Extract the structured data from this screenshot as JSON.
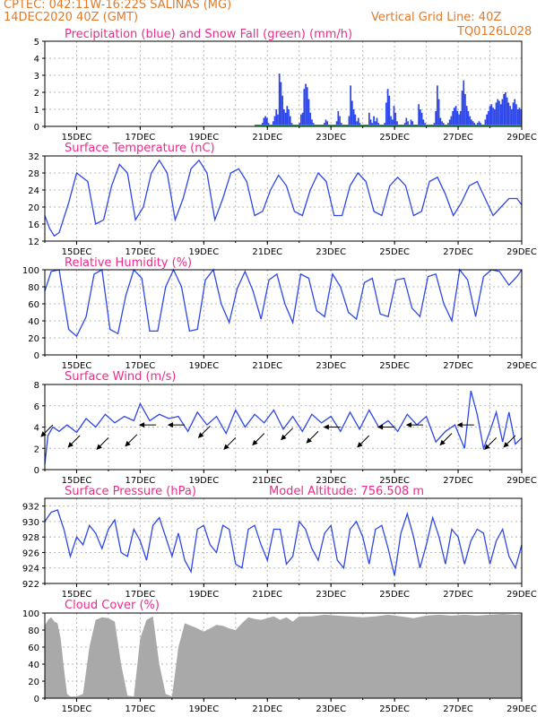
{
  "header": {
    "station": "CPTEC:  042:11W-16:22S  SALINAS (MG)",
    "date": "14DEC2020 40Z (GMT)",
    "grid_note": "Vertical Grid Line: 40Z",
    "code": "TQ0126L028"
  },
  "colors": {
    "line": "#2e47e8",
    "snow": "#21b24a",
    "title": "#ee2a8a",
    "header": "#e07a2a",
    "cloud": "#a9a9a9",
    "wind_arrow": "#000000"
  },
  "x_tick_labels": [
    "15DEC",
    "17DEC",
    "19DEC",
    "21DEC",
    "23DEC",
    "25DEC",
    "27DEC",
    "29DEC"
  ],
  "chart_data": [
    {
      "type": "bar",
      "title": "Precipitation (blue) and Snow Fall (green) (mm/h)",
      "ylim": [
        0,
        5
      ],
      "yticks": [
        0,
        1,
        2,
        3,
        4,
        5
      ],
      "grid": true,
      "x_start": "14DEC2020 00Z",
      "x_end": "29DEC2020 00Z",
      "series": [
        {
          "name": "precipitation",
          "values": [
            0,
            0,
            0,
            0,
            0,
            0,
            0,
            0,
            0,
            0,
            0,
            0,
            0,
            0,
            0,
            0,
            0,
            0,
            0,
            0,
            0,
            0,
            0,
            0,
            0,
            0,
            0,
            0,
            0,
            0,
            0,
            0,
            0,
            0,
            0,
            0,
            0,
            0,
            0,
            0,
            0,
            0,
            0,
            0,
            0,
            0,
            0,
            0,
            0,
            0,
            0,
            0,
            0,
            0,
            0,
            0,
            0,
            0,
            0,
            0,
            0,
            0,
            0,
            0,
            0,
            0,
            0,
            0,
            0,
            0,
            0,
            0,
            0,
            0,
            0,
            0,
            0,
            0,
            0,
            0,
            0,
            0,
            0,
            0,
            0,
            0,
            0,
            0,
            0,
            0,
            0,
            0,
            0,
            0,
            0,
            0,
            0,
            0,
            0,
            0,
            0,
            0,
            0,
            0,
            0,
            0,
            0,
            0,
            0,
            0,
            0,
            0,
            0,
            0,
            0,
            0,
            0,
            0,
            0,
            0,
            0,
            0,
            0,
            0,
            0,
            0,
            0,
            0,
            0,
            0,
            0,
            0,
            0,
            0,
            0,
            0,
            0,
            0,
            0,
            0,
            0.2,
            0.5,
            0.6,
            0.5,
            0.2,
            0.1,
            0,
            0.3,
            0.6,
            1.0,
            0.7,
            3.1,
            2.6,
            1.8,
            1.0,
            0.8,
            1.2,
            1.0,
            0.6,
            0.2,
            0.1,
            0,
            0,
            0.1,
            0.2,
            0.7,
            0.8,
            2.2,
            2.5,
            2.3,
            1.6,
            0.8,
            0.4,
            0.2,
            0.1,
            0.05,
            0,
            0,
            0,
            0.1,
            0.2,
            0.4,
            0.3,
            0.1,
            0,
            0,
            0,
            0,
            0.3,
            0.9,
            0.6,
            0.2,
            0.1,
            0,
            0,
            0,
            0.6,
            2.4,
            1.5,
            1.0,
            0.7,
            0.3,
            0.5,
            0.2,
            0.1,
            0,
            0,
            0,
            0.1,
            0.8,
            0.4,
            0.2,
            0.6,
            0.3,
            0.5,
            0.2,
            0.1,
            0,
            0.1,
            0.2,
            1.4,
            2.2,
            1.8,
            0.6,
            0.4,
            1.2,
            0.8,
            0.3,
            0.1,
            0,
            0,
            0.1,
            0.2,
            0.5,
            0.3,
            0.1,
            0.4,
            0.3,
            0.1,
            0,
            0,
            1.3,
            1.0,
            0.8,
            0.4,
            0.2,
            0.1,
            0.1,
            0,
            0,
            0,
            0.2,
            0.9,
            2.4,
            1.6,
            0.5,
            0.3,
            0.2,
            0.1,
            0,
            0.2,
            0.4,
            0.6,
            0.9,
            1.1,
            1.2,
            0.9,
            0.7,
            0.9,
            2.1,
            2.7,
            1.9,
            1.2,
            0.9,
            0.6,
            0.4,
            0.3,
            0.2,
            0.1,
            0.2,
            0.3,
            0.2,
            0.1,
            0.1,
            0.4,
            0.7,
            0.9,
            1.2,
            1.3,
            1.1,
            1.0,
            1.4,
            1.6,
            1.5,
            1.3,
            1.6,
            1.9,
            2.0,
            1.7,
            1.4,
            1.2,
            1.0,
            1.4,
            1.6,
            1.3,
            1.0,
            1.1,
            1.0
          ]
        },
        {
          "name": "snowfall",
          "values": [
            0
          ]
        }
      ]
    },
    {
      "type": "line",
      "title": "Surface Temperature (nC)",
      "ylim": [
        12,
        32
      ],
      "yticks": [
        12,
        16,
        20,
        24,
        28,
        32
      ],
      "grid": true,
      "x_start": "14DEC2020 00Z",
      "x_end": "29DEC2020 00Z",
      "series": [
        {
          "name": "temperature",
          "x_days": [
            0,
            0.15,
            0.3,
            0.45,
            0.75,
            1.0,
            1.35,
            1.6,
            1.85,
            2.1,
            2.35,
            2.6,
            2.85,
            3.1,
            3.35,
            3.6,
            3.85,
            4.1,
            4.35,
            4.6,
            4.85,
            5.1,
            5.35,
            5.6,
            5.85,
            6.1,
            6.35,
            6.6,
            6.85,
            7.1,
            7.35,
            7.6,
            7.85,
            8.1,
            8.35,
            8.6,
            8.85,
            9.1,
            9.35,
            9.6,
            9.85,
            10.1,
            10.35,
            10.6,
            10.85,
            11.1,
            11.35,
            11.6,
            11.85,
            12.1,
            12.35,
            12.6,
            12.85,
            13.1,
            13.35,
            13.6,
            13.85,
            14.1,
            14.35,
            14.6,
            14.85,
            15.0
          ],
          "values": [
            18,
            15,
            13.2,
            14,
            21,
            28,
            26,
            16,
            17,
            25,
            30,
            28,
            17,
            20,
            28,
            31,
            28,
            17,
            22,
            29,
            31,
            28,
            17,
            22,
            28,
            29,
            26,
            18,
            19,
            24,
            27.5,
            25,
            19,
            18,
            24,
            28,
            26,
            18,
            18,
            25,
            28,
            26,
            19,
            18,
            25,
            27,
            25,
            18,
            19,
            26,
            27,
            23,
            18,
            21,
            25,
            26,
            22,
            18,
            20,
            22,
            22,
            20.5
          ]
        }
      ]
    },
    {
      "type": "line",
      "title": "Relative Humidity (%)",
      "ylim": [
        0,
        100
      ],
      "yticks": [
        0,
        20,
        40,
        60,
        80,
        100
      ],
      "grid": true,
      "x_start": "14DEC2020 00Z",
      "x_end": "29DEC2020 00Z",
      "series": [
        {
          "name": "relative humidity",
          "x_days": [
            0,
            0.2,
            0.45,
            0.75,
            1.0,
            1.3,
            1.55,
            1.8,
            2.05,
            2.3,
            2.55,
            2.8,
            3.05,
            3.3,
            3.55,
            3.8,
            4.05,
            4.3,
            4.55,
            4.8,
            5.05,
            5.3,
            5.55,
            5.8,
            6.05,
            6.3,
            6.55,
            6.8,
            7.05,
            7.3,
            7.55,
            7.8,
            8.05,
            8.3,
            8.55,
            8.8,
            9.05,
            9.3,
            9.55,
            9.8,
            10.05,
            10.3,
            10.55,
            10.8,
            11.05,
            11.3,
            11.55,
            11.8,
            12.05,
            12.3,
            12.55,
            12.8,
            13.05,
            13.3,
            13.55,
            13.8,
            14.05,
            14.3,
            14.6,
            14.85,
            15.0
          ],
          "values": [
            75,
            98,
            100,
            30,
            22,
            45,
            95,
            100,
            30,
            25,
            70,
            100,
            90,
            28,
            28,
            80,
            100,
            80,
            28,
            30,
            88,
            100,
            60,
            38,
            78,
            98,
            75,
            42,
            88,
            95,
            60,
            38,
            95,
            90,
            52,
            45,
            95,
            80,
            50,
            42,
            85,
            90,
            48,
            45,
            88,
            90,
            55,
            45,
            92,
            95,
            60,
            40,
            100,
            88,
            45,
            92,
            100,
            98,
            82,
            92,
            100
          ]
        }
      ]
    },
    {
      "type": "line",
      "title": "Surface Wind (m/s)",
      "ylim": [
        0,
        8
      ],
      "yticks": [
        0,
        2,
        4,
        6,
        8
      ],
      "grid": true,
      "x_start": "14DEC2020 00Z",
      "x_end": "29DEC2020 00Z",
      "series": [
        {
          "name": "wind speed",
          "x_days": [
            0,
            0.1,
            0.25,
            0.45,
            0.7,
            1.0,
            1.3,
            1.6,
            1.9,
            2.2,
            2.5,
            2.8,
            3.0,
            3.3,
            3.6,
            3.9,
            4.2,
            4.5,
            4.8,
            5.1,
            5.4,
            5.7,
            6.0,
            6.3,
            6.6,
            6.9,
            7.2,
            7.5,
            7.8,
            8.1,
            8.4,
            8.7,
            9.0,
            9.3,
            9.6,
            9.9,
            10.2,
            10.5,
            10.8,
            11.1,
            11.4,
            11.7,
            12.0,
            12.3,
            12.6,
            12.9,
            13.2,
            13.4,
            13.6,
            13.8,
            14.0,
            14.2,
            14.4,
            14.6,
            14.8,
            15.0
          ],
          "values": [
            0.5,
            3.2,
            4.0,
            3.6,
            4.2,
            3.5,
            4.8,
            4.0,
            5.2,
            4.4,
            5.0,
            4.6,
            6.2,
            4.6,
            5.2,
            4.8,
            5.0,
            3.6,
            5.4,
            4.2,
            5.0,
            3.4,
            5.6,
            4.0,
            5.2,
            4.4,
            5.6,
            3.8,
            5.0,
            3.6,
            5.2,
            4.4,
            5.0,
            3.6,
            5.4,
            3.8,
            5.6,
            4.0,
            4.6,
            3.6,
            5.2,
            4.2,
            5.0,
            2.6,
            3.6,
            4.2,
            2.0,
            7.4,
            5.2,
            2.0,
            3.6,
            5.4,
            2.6,
            5.4,
            2.4,
            3.0
          ]
        }
      ]
    },
    {
      "type": "line",
      "title": "Surface Pressure (hPa)",
      "annotation": "Model Altitude: 756.508 m",
      "ylim": [
        922,
        933
      ],
      "yticks": [
        922,
        924,
        926,
        928,
        930,
        932
      ],
      "grid": true,
      "x_start": "14DEC2020 00Z",
      "x_end": "29DEC2020 00Z",
      "series": [
        {
          "name": "pressure",
          "x_days": [
            0,
            0.2,
            0.4,
            0.6,
            0.8,
            1.0,
            1.2,
            1.4,
            1.6,
            1.8,
            2.0,
            2.2,
            2.4,
            2.6,
            2.8,
            3.0,
            3.2,
            3.4,
            3.6,
            3.8,
            4.0,
            4.2,
            4.4,
            4.6,
            4.8,
            5.0,
            5.2,
            5.4,
            5.6,
            5.8,
            6.0,
            6.2,
            6.4,
            6.6,
            6.8,
            7.0,
            7.2,
            7.4,
            7.6,
            7.8,
            8.0,
            8.2,
            8.4,
            8.6,
            8.8,
            9.0,
            9.2,
            9.4,
            9.6,
            9.8,
            10.0,
            10.2,
            10.4,
            10.6,
            10.8,
            11.0,
            11.2,
            11.4,
            11.6,
            11.8,
            12.0,
            12.2,
            12.4,
            12.6,
            12.8,
            13.0,
            13.2,
            13.4,
            13.6,
            13.8,
            14.0,
            14.2,
            14.4,
            14.6,
            14.8,
            15.0
          ],
          "values": [
            930,
            931.2,
            931.5,
            929,
            925.5,
            928,
            927,
            929.5,
            928.5,
            926.5,
            929,
            930.2,
            926,
            925.5,
            929,
            927.5,
            925,
            929.5,
            930.5,
            928,
            925.5,
            928.5,
            925,
            923.5,
            929,
            929.5,
            927,
            926,
            929.5,
            929,
            924.5,
            924,
            929,
            929.5,
            927,
            925,
            929,
            929,
            924.5,
            925.5,
            930,
            929,
            926.5,
            925,
            928.5,
            929.5,
            925,
            924,
            929,
            930,
            928,
            924.5,
            929,
            929.5,
            926.5,
            923,
            928.5,
            931,
            928,
            924,
            927,
            930.5,
            928,
            924.5,
            929,
            928,
            924.5,
            927.5,
            929,
            928.5,
            924.5,
            927.5,
            929,
            925.5,
            924,
            927
          ]
        }
      ]
    },
    {
      "type": "area",
      "title": "Cloud Cover (%)",
      "ylim": [
        0,
        100
      ],
      "yticks": [
        0,
        20,
        40,
        60,
        80,
        100
      ],
      "grid": true,
      "x_start": "14DEC2020 00Z",
      "x_end": "29DEC2020 00Z",
      "series": [
        {
          "name": "cloud cover",
          "x_days": [
            0,
            0.1,
            0.2,
            0.3,
            0.4,
            0.5,
            0.6,
            0.7,
            0.8,
            0.9,
            1.0,
            1.2,
            1.4,
            1.6,
            1.8,
            2.0,
            2.2,
            2.4,
            2.6,
            2.8,
            3.0,
            3.2,
            3.4,
            3.6,
            3.8,
            4.0,
            4.2,
            4.4,
            4.6,
            4.8,
            5.0,
            5.2,
            5.4,
            5.6,
            5.8,
            6.0,
            6.2,
            6.4,
            6.6,
            6.8,
            7.0,
            7.2,
            7.4,
            7.6,
            7.8,
            8.0,
            8.4,
            8.8,
            9.2,
            9.6,
            10.0,
            10.4,
            10.8,
            11.2,
            11.6,
            12.0,
            12.4,
            12.8,
            13.2,
            13.6,
            14.0,
            14.4,
            14.8,
            15.0
          ],
          "values": [
            85,
            92,
            95,
            90,
            88,
            70,
            35,
            5,
            2,
            2,
            2,
            5,
            60,
            92,
            95,
            94,
            90,
            40,
            3,
            2,
            70,
            92,
            96,
            40,
            5,
            2,
            60,
            88,
            85,
            82,
            78,
            82,
            86,
            85,
            82,
            80,
            88,
            95,
            93,
            92,
            94,
            96,
            92,
            95,
            90,
            96,
            96,
            98,
            97,
            96,
            95,
            96,
            98,
            96,
            94,
            97,
            98,
            97,
            98,
            97,
            98,
            99,
            98,
            99
          ]
        }
      ]
    }
  ]
}
